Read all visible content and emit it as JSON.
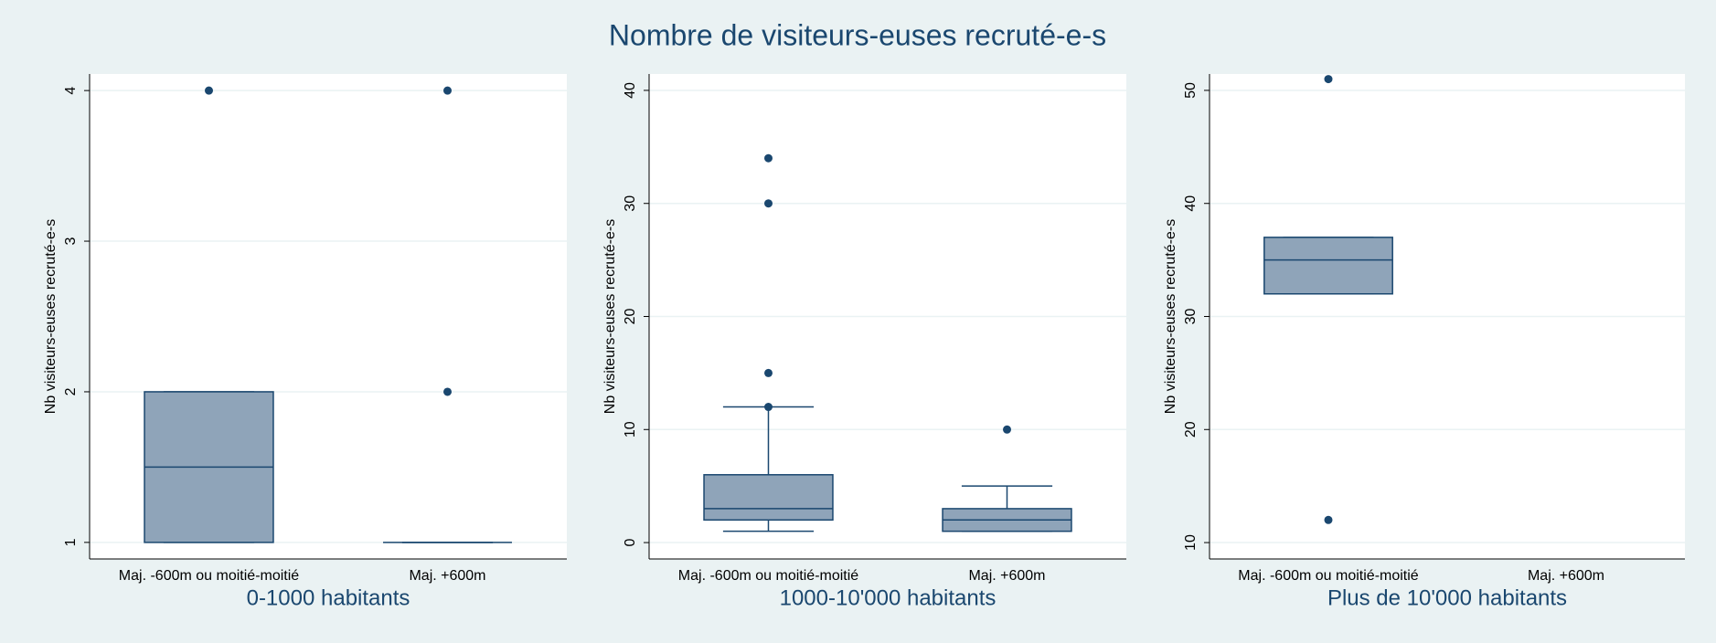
{
  "title": "Nombre de visiteurs-euses recruté-e-s",
  "chart_data": [
    {
      "type": "box",
      "title": "0-1000 habitants",
      "ylabel": "Nb visiteurs-euses recruté-e-s",
      "categories": [
        "Maj. -600m ou moitié-moitié",
        "Maj. +600m"
      ],
      "boxes": [
        {
          "min": 1,
          "q1": 1,
          "median": 1.5,
          "q3": 2,
          "max": 2,
          "outliers": [
            4
          ]
        },
        {
          "min": 1,
          "q1": 1,
          "median": 1,
          "q3": 1,
          "max": 1,
          "outliers": [
            2,
            4
          ]
        }
      ],
      "color": "#8fa4b9",
      "line_color": "#1a476f",
      "ylim": [
        0.89,
        4.11
      ],
      "yticks": [
        1,
        2,
        3,
        4
      ],
      "grid": true
    },
    {
      "type": "box",
      "title": "1000-10'000 habitants",
      "ylabel": "Nb visiteurs-euses recruté-e-s",
      "categories": [
        "Maj. -600m ou moitié-moitié",
        "Maj. +600m"
      ],
      "boxes": [
        {
          "min": 1,
          "q1": 2,
          "median": 3,
          "q3": 6,
          "max": 12,
          "outliers": [
            12,
            15,
            30,
            34
          ]
        },
        {
          "min": 1,
          "q1": 1,
          "median": 2,
          "q3": 3,
          "max": 5,
          "outliers": [
            10
          ]
        }
      ],
      "color": "#8fa4b9",
      "line_color": "#1a476f",
      "ylim": [
        -1.45,
        41.45
      ],
      "yticks": [
        0,
        10,
        20,
        30,
        40
      ],
      "grid": true
    },
    {
      "type": "box",
      "title": "Plus de 10'000 habitants",
      "ylabel": "Nb visiteurs-euses recruté-e-s",
      "categories": [
        "Maj. -600m ou moitié-moitié",
        "Maj. +600m"
      ],
      "boxes": [
        {
          "min": 32,
          "q1": 32,
          "median": 35,
          "q3": 37,
          "max": 37,
          "outliers": [
            12,
            51
          ]
        },
        null
      ],
      "color": "#8fa4b9",
      "line_color": "#1a476f",
      "ylim": [
        8.55,
        51.45
      ],
      "yticks": [
        10,
        20,
        30,
        40,
        50
      ],
      "grid": true
    }
  ]
}
